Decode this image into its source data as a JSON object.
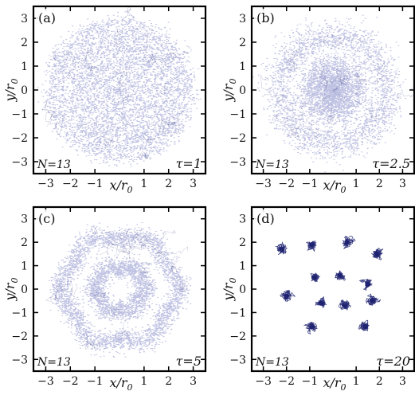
{
  "colors": {
    "ink": "#1b1f6e",
    "cloud": "#3a44a8",
    "frame": "#000000"
  },
  "chart_data": [
    {
      "type": "scatter",
      "panel_label": "(a)",
      "N_label": "N=13",
      "tau_label": "τ=1",
      "tau": 1,
      "N": 13,
      "xlabel": "x/r0",
      "ylabel": "y/r0",
      "xlim": [
        -3.5,
        3.5
      ],
      "ylim": [
        -3.5,
        3.5
      ],
      "xticks": [
        -3,
        -2,
        -1,
        1,
        2,
        3
      ],
      "yticks": [
        -3,
        -2,
        -1,
        0,
        1,
        2,
        3
      ],
      "pattern": "diffuse-disk",
      "radius": 3.0
    },
    {
      "type": "scatter",
      "panel_label": "(b)",
      "N_label": "N=13",
      "tau_label": "τ=2.5",
      "tau": 2.5,
      "N": 13,
      "xlabel": "x/r0",
      "ylabel": "y/r0",
      "xlim": [
        -3.5,
        3.5
      ],
      "ylim": [
        -3.5,
        3.5
      ],
      "xticks": [
        -3,
        -2,
        -1,
        1,
        2,
        3
      ],
      "yticks": [
        -3,
        -2,
        -1,
        0,
        1,
        2,
        3
      ],
      "pattern": "ring-disk",
      "radius": 2.8
    },
    {
      "type": "scatter",
      "panel_label": "(c)",
      "N_label": "N=13",
      "tau_label": "τ=5",
      "tau": 5,
      "N": 13,
      "xlabel": "x/r0",
      "ylabel": "y/r0",
      "xlim": [
        -3.5,
        3.5
      ],
      "ylim": [
        -3.5,
        3.5
      ],
      "xticks": [
        -3,
        -2,
        -1,
        1,
        2,
        3
      ],
      "yticks": [
        -3,
        -2,
        -1,
        0,
        1,
        2,
        3
      ],
      "pattern": "two-rings",
      "rings": [
        1.0,
        2.3
      ]
    },
    {
      "type": "scatter",
      "panel_label": "(d)",
      "N_label": "N=13",
      "tau_label": "τ=20",
      "tau": 20,
      "N": 13,
      "xlabel": "x/r0",
      "ylabel": "y/r0",
      "xlim": [
        -3.5,
        3.5
      ],
      "ylim": [
        -3.5,
        3.5
      ],
      "xticks": [
        -3,
        -2,
        -1,
        1,
        2,
        3
      ],
      "yticks": [
        -3,
        -2,
        -1,
        0,
        1,
        2,
        3
      ],
      "pattern": "clusters",
      "x": [
        -2.2,
        -0.9,
        0.6,
        1.9,
        -0.8,
        0.3,
        1.5,
        -2.0,
        -0.5,
        0.5,
        1.7,
        -0.9,
        1.4
      ],
      "y": [
        1.7,
        1.9,
        2.0,
        1.5,
        0.5,
        0.6,
        0.2,
        -0.3,
        -0.6,
        -0.7,
        -0.5,
        -1.6,
        -1.6
      ]
    }
  ]
}
